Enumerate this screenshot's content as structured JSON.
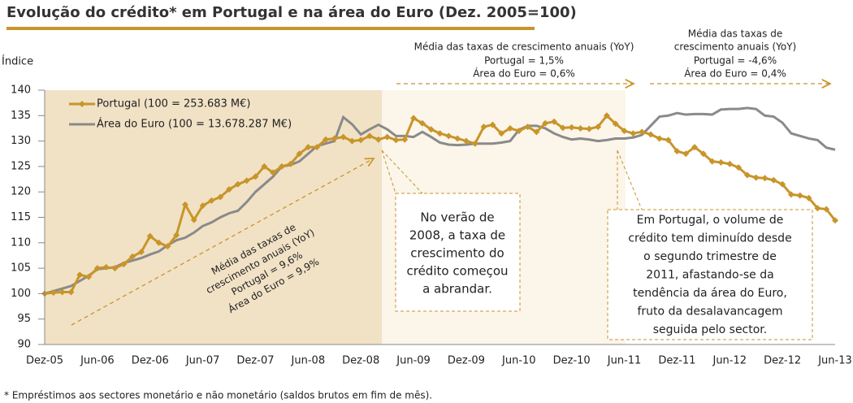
{
  "chart_data": {
    "type": "line",
    "title": "Evolução do crédito* em Portugal e na área do Euro (Dez. 2005=100)",
    "y_label": "Índice",
    "footnote": "* Empréstimos aos sectores monetário e não monetário (saldos brutos em fim de mês).",
    "categories": [
      "Dez-05",
      null,
      null,
      null,
      null,
      null,
      "Jun-06",
      null,
      null,
      null,
      null,
      null,
      "Dez-06",
      null,
      null,
      null,
      null,
      null,
      "Jun-07",
      null,
      null,
      null,
      null,
      null,
      "Dez-07",
      null,
      null,
      null,
      null,
      null,
      "Jun-08",
      null,
      null,
      null,
      null,
      null,
      "Dez-08",
      null,
      null,
      null,
      null,
      null,
      "Jun-09",
      null,
      null,
      null,
      null,
      null,
      "Dez-09",
      null,
      null,
      null,
      null,
      null,
      "Jun-10",
      null,
      null,
      null,
      null,
      null,
      "Dez-10",
      null,
      null,
      null,
      null,
      null,
      "Jun-11",
      null,
      null,
      null,
      null,
      null,
      "Dez-11",
      null,
      null,
      null,
      null,
      null,
      "Jun-12",
      null,
      null,
      null,
      null,
      null,
      "Dez-12",
      null,
      null,
      null,
      null,
      null,
      "Jun-13"
    ],
    "series": [
      {
        "name": "Portugal (100 = 253.683 M€)",
        "color": "#c8952a",
        "values": [
          100,
          100.2,
          100.3,
          100.3,
          103.7,
          103.3,
          105,
          105.2,
          105,
          105.8,
          107.3,
          108.2,
          111.3,
          110,
          109.3,
          111.5,
          117.5,
          114.5,
          117.3,
          118.3,
          119,
          120.5,
          121.5,
          122.2,
          123,
          125,
          123.8,
          125,
          125.5,
          127.5,
          128.8,
          128.8,
          130.3,
          130.5,
          130.8,
          130,
          130.2,
          131,
          130.3,
          130.8,
          130.2,
          130.3,
          134.5,
          133.5,
          132.3,
          131.5,
          131,
          130.5,
          130,
          129.5,
          132.8,
          133.2,
          131.5,
          132.5,
          132,
          132.8,
          131.8,
          133.5,
          133.8,
          132.6,
          132.7,
          132.5,
          132.4,
          132.8,
          135,
          133.4,
          132,
          131.5,
          131.8,
          131.3,
          130.5,
          130.2,
          128,
          127.5,
          128.8,
          127.5,
          126,
          125.8,
          125.5,
          124.8,
          123.3,
          122.8,
          122.7,
          122.3,
          121.5,
          119.5,
          119.3,
          118.8,
          116.8,
          116.6,
          114.4
        ]
      },
      {
        "name": "Área do Euro (100 = 13.678.287 M€)",
        "color": "#8a8a8a",
        "values": [
          100,
          100.5,
          101,
          101.5,
          102.5,
          103.5,
          104.8,
          105,
          105.2,
          106,
          106.5,
          107,
          107.7,
          108.3,
          109.5,
          110.5,
          111,
          112,
          113.3,
          114,
          115,
          115.8,
          116.3,
          118,
          120,
          121.5,
          123,
          125,
          125.3,
          126,
          127.5,
          129,
          129.5,
          130,
          134.7,
          133.3,
          131.3,
          132.3,
          133.2,
          132.3,
          131,
          131,
          130.8,
          131.8,
          130.8,
          129.7,
          129.3,
          129.2,
          129.3,
          129.5,
          129.5,
          129.5,
          129.7,
          130,
          132.2,
          133,
          133,
          132.5,
          131.5,
          130.8,
          130.3,
          130.5,
          130.3,
          130,
          130.2,
          130.5,
          130.5,
          130.7,
          131.2,
          133,
          134.8,
          135,
          135.5,
          135.2,
          135.3,
          135.3,
          135.2,
          136.2,
          136.3,
          136.3,
          136.5,
          136.3,
          135,
          134.8,
          133.6,
          131.5,
          131,
          130.5,
          130.2,
          128.7,
          128.3
        ]
      }
    ],
    "ylim": [
      90,
      140
    ],
    "yticks": [
      90,
      95,
      100,
      105,
      110,
      115,
      120,
      125,
      130,
      135,
      140
    ],
    "annotations": {
      "period1": [
        "Média das taxas de",
        "crescimento anuais (YoY)",
        "Portugal = 9,6%",
        "Área do Euro = 9,9%"
      ],
      "period2": [
        "Média das taxas de crescimento anuais (YoY)",
        "Portugal = 1,5%",
        "Área do Euro = 0,6%"
      ],
      "period3": [
        "Média das taxas de",
        "crescimento anuais (YoY)",
        "Portugal = -4,6%",
        "Área do Euro = 0,4%"
      ],
      "box1": [
        "No verão de",
        "2008, a taxa de",
        "crescimento do",
        "crédito começou",
        "a abrandar."
      ],
      "box2": [
        "Em Portugal, o volume de",
        "crédito tem diminuído desde",
        "o segundo trimestre de",
        "2011, afastando-se da",
        "tendência da área do Euro,",
        "fruto da desalavancagem",
        "seguida pelo sector."
      ]
    }
  }
}
